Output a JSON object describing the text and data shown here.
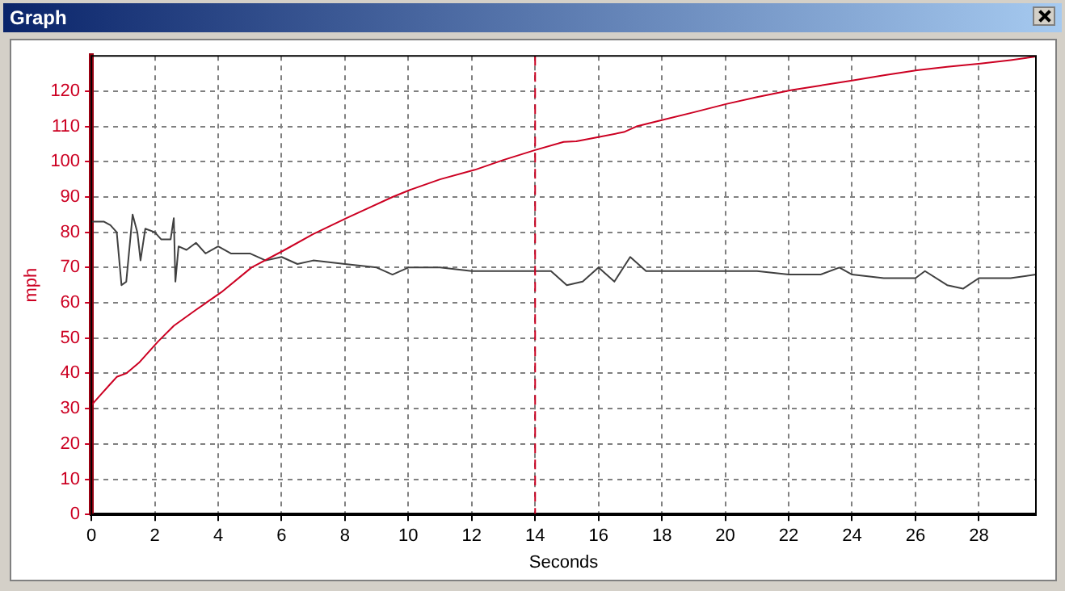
{
  "chart_data": {
    "type": "line",
    "title": "Graph",
    "xlabel": "Seconds",
    "ylabel": "mph",
    "xlim": [
      0,
      29.8
    ],
    "xticks": [
      0,
      2,
      4,
      6,
      8,
      10,
      12,
      14,
      16,
      18,
      20,
      22,
      24,
      26,
      28
    ],
    "ylim": [
      0,
      130
    ],
    "yticks": [
      0,
      10,
      20,
      30,
      40,
      50,
      60,
      70,
      80,
      90,
      100,
      110,
      120
    ],
    "grid": true,
    "marker": "none",
    "line_style": "solid",
    "ref_lines": [
      {
        "axis": "x",
        "value": 14,
        "color": "#cc0022",
        "line_style": "dashed"
      }
    ],
    "series": [
      {
        "color": "#cc0022",
        "x": [
          0,
          0.3,
          0.6,
          0.8,
          1.1,
          1.5,
          2.1,
          2.6,
          3.3,
          4.1,
          5.05,
          6.1,
          7,
          8.05,
          9.5,
          10.05,
          11,
          12.1,
          13,
          14,
          14.9,
          15.3,
          16,
          16.8,
          17.2,
          18,
          19,
          20.05,
          21,
          22.1,
          23,
          24,
          25,
          26.05,
          27,
          28.05,
          29,
          29.8
        ],
        "values": [
          31,
          34,
          37,
          39,
          40,
          43,
          49,
          53.5,
          58,
          63,
          70,
          75,
          79.5,
          84,
          90,
          92,
          95,
          97.7,
          100.5,
          103.3,
          105.6,
          105.8,
          107,
          108.4,
          110,
          111.8,
          114,
          116.4,
          118.3,
          120.3,
          121.6,
          123,
          124.5,
          125.9,
          126.9,
          127.8,
          128.8,
          129.8
        ]
      },
      {
        "color": "#404040",
        "x": [
          0,
          0.4,
          0.6,
          0.8,
          0.95,
          1.1,
          1.3,
          1.45,
          1.55,
          1.7,
          2.0,
          2.2,
          2.5,
          2.6,
          2.65,
          2.75,
          3.0,
          3.3,
          3.6,
          4.0,
          4.4,
          5.0,
          5.5,
          6.0,
          6.5,
          7.0,
          8.0,
          9.0,
          9.5,
          10,
          11,
          12,
          13,
          14,
          14.5,
          15,
          15.5,
          16,
          16.5,
          17,
          17.5,
          18,
          19,
          20,
          21,
          22,
          23,
          23.6,
          24,
          25,
          26,
          26.3,
          27,
          27.5,
          28,
          29,
          29.8
        ],
        "values": [
          83,
          83,
          82,
          80,
          65,
          66,
          85,
          80,
          72,
          81,
          80,
          78,
          78,
          84,
          66,
          76,
          75,
          77,
          74,
          76,
          74,
          74,
          72,
          73,
          71,
          72,
          71,
          70,
          68,
          70,
          70,
          69,
          69,
          69,
          69,
          65,
          66,
          70,
          66,
          73,
          69,
          69,
          69,
          69,
          69,
          68,
          68,
          70,
          68,
          67,
          67,
          69,
          65,
          64,
          67,
          67,
          68
        ]
      }
    ]
  }
}
